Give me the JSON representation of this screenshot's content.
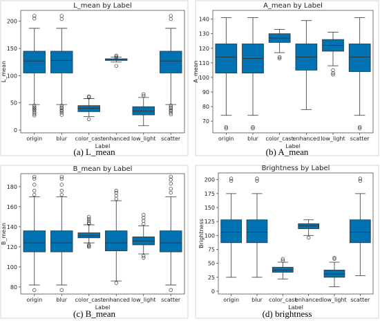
{
  "box_color": "#0072b2",
  "chart_data": [
    {
      "type": "box",
      "title": "L_mean by Label",
      "xlabel": "Label",
      "ylabel": "L_mean",
      "caption": "(a)  L_mean",
      "categories": [
        "origin",
        "blur",
        "color_cast",
        "enhanced",
        "low_light",
        "scatter"
      ],
      "ylim": [
        -5,
        220
      ],
      "yticks": [
        0,
        50,
        100,
        150,
        200
      ],
      "boxes": [
        {
          "whislo": 47,
          "q1": 105,
          "med": 127,
          "q3": 145,
          "whishi": 187,
          "fliers": [
            210,
            205,
            45,
            42,
            40,
            38,
            36,
            33,
            30,
            27
          ]
        },
        {
          "whislo": 47,
          "q1": 105,
          "med": 128,
          "q3": 145,
          "whishi": 187,
          "fliers": [
            210,
            204,
            45,
            42,
            40,
            37,
            35,
            32,
            28
          ]
        },
        {
          "whislo": 25,
          "q1": 34,
          "med": 40,
          "q3": 45,
          "whishi": 58,
          "fliers": [
            62,
            60,
            20
          ]
        },
        {
          "whislo": 125,
          "q1": 128,
          "med": 130,
          "q3": 131,
          "whishi": 134,
          "fliers": [
            137,
            135,
            133,
            118
          ]
        },
        {
          "whislo": 8,
          "q1": 28,
          "med": 35,
          "q3": 43,
          "whishi": 60,
          "fliers": [
            66,
            63
          ]
        },
        {
          "whislo": 47,
          "q1": 105,
          "med": 127,
          "q3": 145,
          "whishi": 187,
          "fliers": [
            210,
            204,
            45,
            42,
            40,
            37,
            35,
            32,
            29
          ]
        }
      ]
    },
    {
      "type": "box",
      "title": "A_mean by Label",
      "xlabel": "Label",
      "ylabel": "A_mean",
      "caption": "(b) A_mean",
      "categories": [
        "origin",
        "blur",
        "color_cast",
        "enhanced",
        "low_light",
        "scatter"
      ],
      "ylim": [
        62,
        146
      ],
      "yticks": [
        70,
        80,
        90,
        100,
        110,
        120,
        130,
        140
      ],
      "boxes": [
        {
          "whislo": 74,
          "q1": 103,
          "med": 114,
          "q3": 123,
          "whishi": 141,
          "fliers": [
            66,
            65
          ]
        },
        {
          "whislo": 74,
          "q1": 103,
          "med": 113,
          "q3": 123,
          "whishi": 141,
          "fliers": [
            66,
            65
          ]
        },
        {
          "whislo": 117,
          "q1": 124,
          "med": 127,
          "q3": 130,
          "whishi": 133,
          "fliers": [
            114,
            113
          ]
        },
        {
          "whislo": 78,
          "q1": 105,
          "med": 114,
          "q3": 123,
          "whishi": 139,
          "fliers": []
        },
        {
          "whislo": 108,
          "q1": 118,
          "med": 122,
          "q3": 126,
          "whishi": 131,
          "fliers": [
            105,
            103,
            102
          ]
        },
        {
          "whislo": 74,
          "q1": 104,
          "med": 114,
          "q3": 123,
          "whishi": 141,
          "fliers": [
            66,
            65
          ]
        }
      ]
    },
    {
      "type": "box",
      "title": "B_mean by Label",
      "xlabel": "Label",
      "ylabel": "B_mean",
      "caption": "(c) B_mean",
      "categories": [
        "origin",
        "blur",
        "color_cast",
        "enhanced",
        "low_light",
        "scatter"
      ],
      "ylim": [
        73,
        193
      ],
      "yticks": [
        80,
        100,
        120,
        140,
        160,
        180
      ],
      "boxes": [
        {
          "whislo": 82,
          "q1": 115,
          "med": 124,
          "q3": 136,
          "whishi": 170,
          "fliers": [
            190,
            188,
            182,
            176,
            172,
            77
          ]
        },
        {
          "whislo": 82,
          "q1": 115,
          "med": 124,
          "q3": 136,
          "whishi": 170,
          "fliers": [
            190,
            188,
            182,
            176,
            172,
            77
          ]
        },
        {
          "whislo": 124,
          "q1": 129,
          "med": 131,
          "q3": 134,
          "whishi": 142,
          "fliers": [
            150,
            148,
            146,
            144,
            143,
            122,
            121,
            120
          ]
        },
        {
          "whislo": 86,
          "q1": 116,
          "med": 124,
          "q3": 136,
          "whishi": 166,
          "fliers": [
            176,
            174,
            171,
            168,
            84
          ]
        },
        {
          "whislo": 113,
          "q1": 122,
          "med": 126,
          "q3": 130,
          "whishi": 141,
          "fliers": [
            152,
            149,
            146,
            143,
            111,
            109
          ]
        },
        {
          "whislo": 82,
          "q1": 115,
          "med": 124,
          "q3": 136,
          "whishi": 170,
          "fliers": [
            190,
            187,
            183,
            178,
            174,
            77
          ]
        }
      ]
    },
    {
      "type": "box",
      "title": "Brightness by Label",
      "xlabel": "Label",
      "ylabel": "Brightness",
      "caption": "(d) brightness",
      "categories": [
        "origin",
        "blur",
        "color_cast",
        "enhanced",
        "low_light",
        "scatter"
      ],
      "ylim": [
        -5,
        212
      ],
      "yticks": [
        0,
        25,
        50,
        75,
        100,
        125,
        150,
        175,
        200
      ],
      "boxes": [
        {
          "whislo": 25,
          "q1": 87,
          "med": 106,
          "q3": 128,
          "whishi": 175,
          "fliers": [
            202,
            198
          ]
        },
        {
          "whislo": 25,
          "q1": 87,
          "med": 106,
          "q3": 128,
          "whishi": 175,
          "fliers": [
            202,
            198
          ]
        },
        {
          "whislo": 22,
          "q1": 34,
          "med": 38,
          "q3": 43,
          "whishi": 52,
          "fliers": [
            58,
            55
          ]
        },
        {
          "whislo": 100,
          "q1": 112,
          "med": 117,
          "q3": 121,
          "whishi": 128,
          "fliers": [
            96
          ]
        },
        {
          "whislo": 8,
          "q1": 25,
          "med": 31,
          "q3": 38,
          "whishi": 52,
          "fliers": [
            60,
            58
          ]
        },
        {
          "whislo": 28,
          "q1": 87,
          "med": 106,
          "q3": 128,
          "whishi": 175,
          "fliers": [
            202,
            198
          ]
        }
      ]
    }
  ]
}
